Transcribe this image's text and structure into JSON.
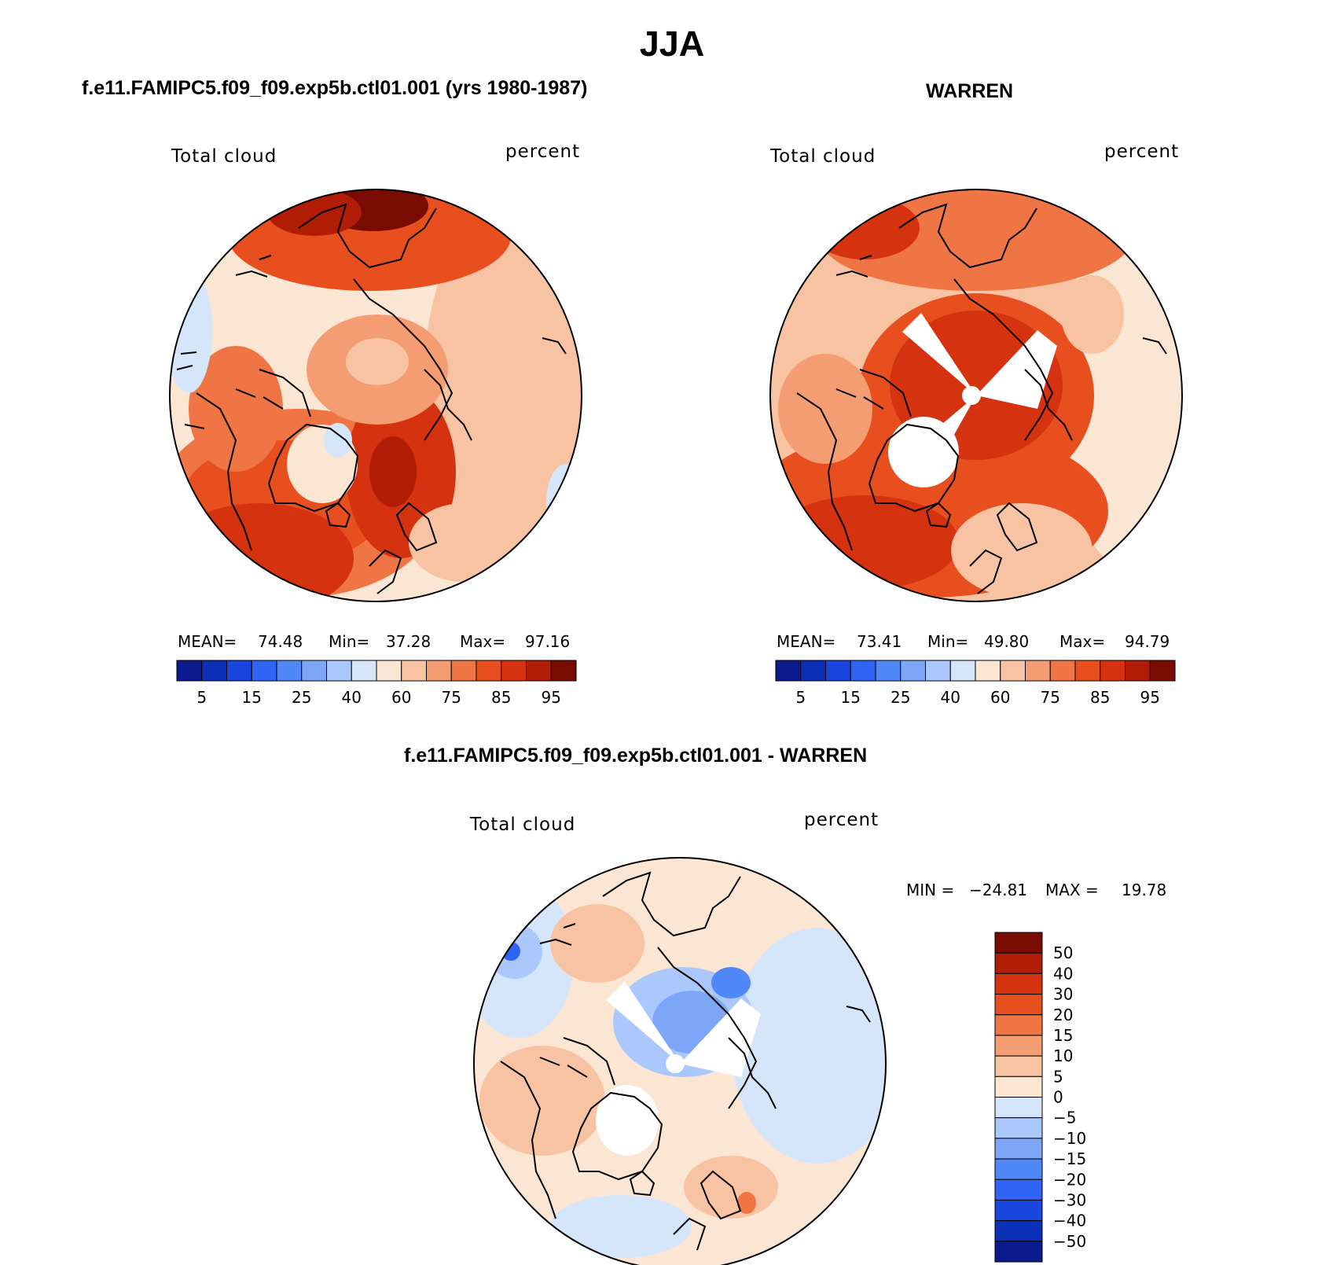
{
  "title": "JJA",
  "panels": [
    {
      "case_title": "f.e11.FAMIPC5.f09_f09.exp5b.ctl01.001 (yrs 1980-1987)",
      "variable": "Total cloud",
      "units": "percent",
      "stats": {
        "mean_label": "MEAN=",
        "mean": "74.48",
        "min_label": "Min=",
        "min": "37.28",
        "max_label": "Max=",
        "max": "97.16"
      }
    },
    {
      "case_title": "WARREN",
      "variable": "Total cloud",
      "units": "percent",
      "stats": {
        "mean_label": "MEAN=",
        "mean": "73.41",
        "min_label": "Min=",
        "min": "49.80",
        "max_label": "Max=",
        "max": "94.79"
      }
    },
    {
      "case_title": "f.e11.FAMIPC5.f09_f09.exp5b.ctl01.001 - WARREN",
      "variable": "Total cloud",
      "units": "percent",
      "stats": {
        "min_label": "MIN =",
        "min": "−24.81",
        "max_label": "MAX =",
        "max": "19.78"
      }
    }
  ],
  "chart_data": [
    {
      "type": "heatmap",
      "projection": "north-polar-stereographic",
      "title": "f.e11.FAMIPC5.f09_f09.exp5b.ctl01.001 (yrs 1980-1987)",
      "field": "Total cloud",
      "units": "percent",
      "mean": 74.48,
      "min": 37.28,
      "max": 97.16,
      "colorbar": {
        "orientation": "horizontal",
        "levels": [
          5,
          10,
          15,
          20,
          25,
          30,
          40,
          50,
          60,
          70,
          75,
          80,
          85,
          90,
          95
        ],
        "tick_labels": [
          "5",
          "15",
          "25",
          "40",
          "60",
          "75",
          "85",
          "95"
        ],
        "colors": [
          "#0b1a8c",
          "#0c2fb8",
          "#1745dd",
          "#2f64f4",
          "#5188f7",
          "#7ea6f8",
          "#aac8fb",
          "#d5e6fb",
          "#fbe5d3",
          "#f8c3a3",
          "#f59d72",
          "#f07544",
          "#e84f1f",
          "#d53210",
          "#b01c05",
          "#7a0b03"
        ]
      }
    },
    {
      "type": "heatmap",
      "projection": "north-polar-stereographic",
      "title": "WARREN",
      "field": "Total cloud",
      "units": "percent",
      "mean": 73.41,
      "min": 49.8,
      "max": 94.79,
      "colorbar": {
        "orientation": "horizontal",
        "levels": [
          5,
          10,
          15,
          20,
          25,
          30,
          40,
          50,
          60,
          70,
          75,
          80,
          85,
          90,
          95
        ],
        "tick_labels": [
          "5",
          "15",
          "25",
          "40",
          "60",
          "75",
          "85",
          "95"
        ],
        "colors": [
          "#0b1a8c",
          "#0c2fb8",
          "#1745dd",
          "#2f64f4",
          "#5188f7",
          "#7ea6f8",
          "#aac8fb",
          "#d5e6fb",
          "#fbe5d3",
          "#f8c3a3",
          "#f59d72",
          "#f07544",
          "#e84f1f",
          "#d53210",
          "#b01c05",
          "#7a0b03"
        ]
      }
    },
    {
      "type": "heatmap",
      "projection": "north-polar-stereographic",
      "title": "f.e11.FAMIPC5.f09_f09.exp5b.ctl01.001 - WARREN",
      "field": "Total cloud",
      "units": "percent",
      "min": -24.81,
      "max": 19.78,
      "colorbar": {
        "orientation": "vertical",
        "levels": [
          50,
          40,
          30,
          20,
          15,
          10,
          5,
          0,
          -5,
          -10,
          -15,
          -20,
          -30,
          -40,
          -50
        ],
        "tick_labels": [
          "50",
          "40",
          "30",
          "20",
          "15",
          "10",
          "5",
          "0",
          "−5",
          "−10",
          "−15",
          "−20",
          "−30",
          "−40",
          "−50"
        ],
        "colors": [
          "#7a0b03",
          "#b01c05",
          "#d53210",
          "#e84f1f",
          "#f07544",
          "#f59d72",
          "#f8c3a3",
          "#fbe5d3",
          "#d5e6fb",
          "#aac8fb",
          "#7ea6f8",
          "#5188f7",
          "#2f64f4",
          "#1745dd",
          "#0c2fb8",
          "#0b1a8c"
        ]
      }
    }
  ]
}
